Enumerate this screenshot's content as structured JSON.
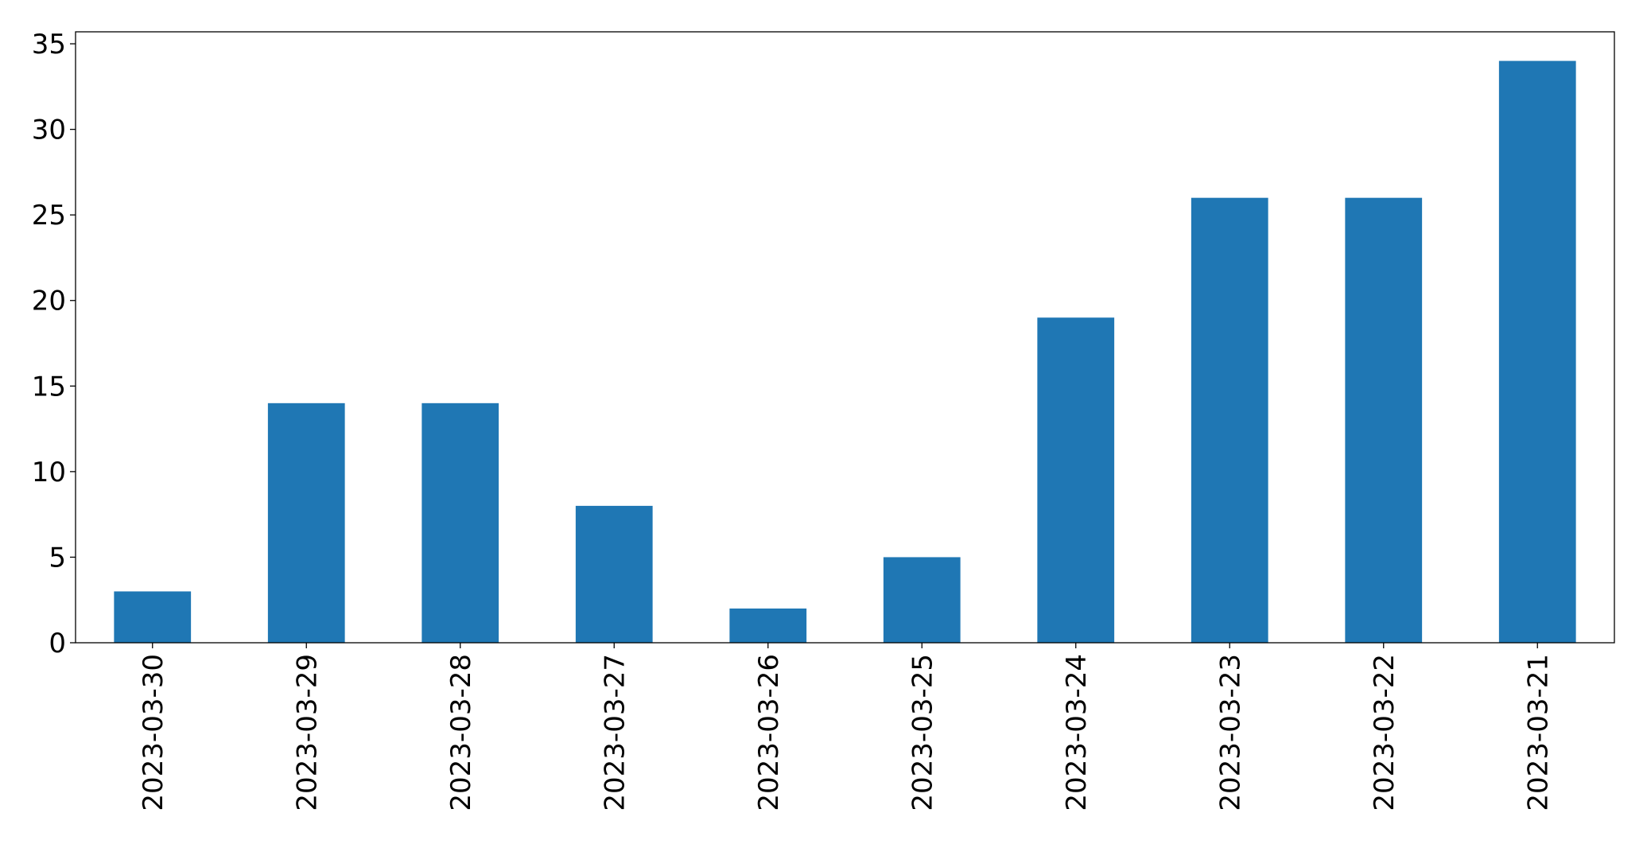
{
  "chart_data": {
    "type": "bar",
    "categories": [
      "2023-03-30",
      "2023-03-29",
      "2023-03-28",
      "2023-03-27",
      "2023-03-26",
      "2023-03-25",
      "2023-03-24",
      "2023-03-23",
      "2023-03-22",
      "2023-03-21"
    ],
    "values": [
      3,
      14,
      14,
      8,
      2,
      5,
      19,
      26,
      26,
      34
    ],
    "color": "#1f77b4",
    "ylim": [
      0,
      35.7
    ],
    "yticks": [
      0,
      5,
      10,
      15,
      20,
      25,
      30,
      35
    ],
    "grid": false
  }
}
